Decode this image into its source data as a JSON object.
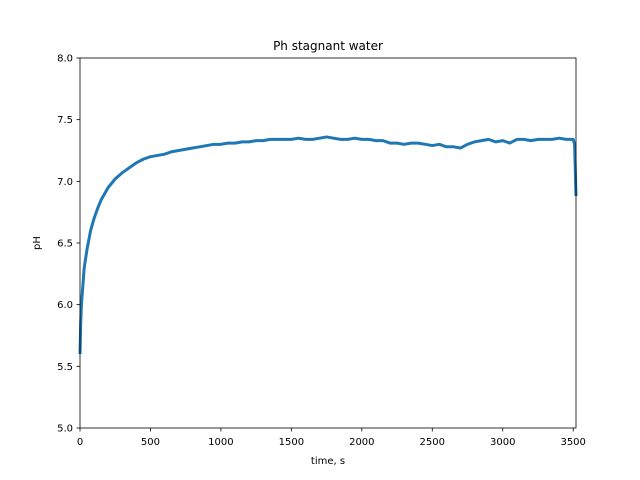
{
  "chart_data": {
    "type": "line",
    "title": "Ph stagnant water",
    "xlabel": "time, s",
    "ylabel": "pH",
    "xlim": [
      0,
      3520
    ],
    "ylim": [
      5.0,
      8.0
    ],
    "x_ticks": [
      0,
      500,
      1000,
      1500,
      2000,
      2500,
      3000,
      3500
    ],
    "x_tick_labels": [
      "0",
      "500",
      "1000",
      "1500",
      "2000",
      "2500",
      "3000",
      "3500"
    ],
    "y_ticks": [
      5.0,
      5.5,
      6.0,
      6.5,
      7.0,
      7.5,
      8.0
    ],
    "y_tick_labels": [
      "5.0",
      "5.5",
      "6.0",
      "6.5",
      "7.0",
      "7.5",
      "8.0"
    ],
    "grid": false,
    "legend": "none",
    "series": [
      {
        "color": "#1f77b4",
        "x": [
          0,
          5,
          10,
          20,
          30,
          50,
          75,
          100,
          125,
          150,
          200,
          250,
          300,
          350,
          400,
          450,
          500,
          550,
          600,
          650,
          700,
          750,
          800,
          850,
          900,
          950,
          1000,
          1050,
          1100,
          1150,
          1200,
          1250,
          1300,
          1350,
          1400,
          1450,
          1500,
          1550,
          1600,
          1650,
          1700,
          1750,
          1800,
          1850,
          1900,
          1950,
          2000,
          2050,
          2100,
          2150,
          2200,
          2250,
          2300,
          2350,
          2400,
          2450,
          2500,
          2550,
          2600,
          2650,
          2700,
          2750,
          2800,
          2850,
          2900,
          2950,
          3000,
          3050,
          3100,
          3150,
          3200,
          3250,
          3300,
          3350,
          3400,
          3450,
          3500,
          3510,
          3520
        ],
        "y": [
          5.6,
          5.85,
          6.0,
          6.15,
          6.3,
          6.45,
          6.6,
          6.7,
          6.78,
          6.85,
          6.95,
          7.02,
          7.07,
          7.11,
          7.15,
          7.18,
          7.2,
          7.21,
          7.22,
          7.24,
          7.25,
          7.26,
          7.27,
          7.28,
          7.29,
          7.3,
          7.3,
          7.31,
          7.31,
          7.32,
          7.32,
          7.33,
          7.33,
          7.34,
          7.34,
          7.34,
          7.34,
          7.35,
          7.34,
          7.34,
          7.35,
          7.36,
          7.35,
          7.34,
          7.34,
          7.35,
          7.34,
          7.34,
          7.33,
          7.33,
          7.31,
          7.31,
          7.3,
          7.31,
          7.31,
          7.3,
          7.29,
          7.3,
          7.28,
          7.28,
          7.27,
          7.3,
          7.32,
          7.33,
          7.34,
          7.32,
          7.33,
          7.31,
          7.34,
          7.34,
          7.33,
          7.34,
          7.34,
          7.34,
          7.35,
          7.34,
          7.34,
          7.3,
          6.88
        ]
      }
    ]
  }
}
